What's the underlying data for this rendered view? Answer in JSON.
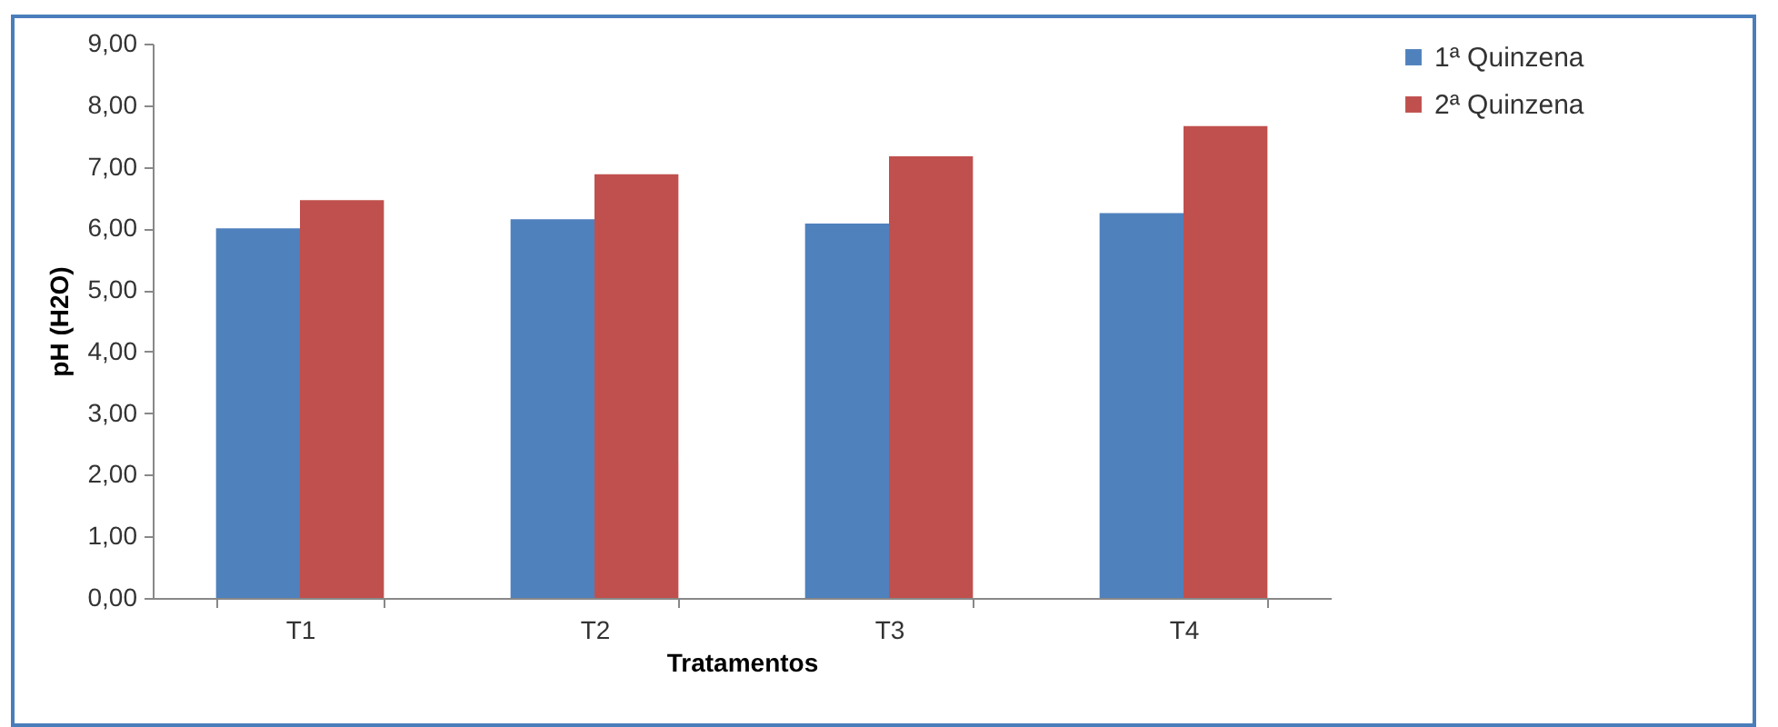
{
  "chart_data": {
    "type": "bar",
    "xlabel": "Tratamentos",
    "ylabel": "pH (H2O)",
    "categories": [
      "T1",
      "T2",
      "T3",
      "T4"
    ],
    "series": [
      {
        "name": "1ª Quinzena",
        "color": "#4f81bd",
        "values": [
          6.0,
          6.15,
          6.08,
          6.25
        ]
      },
      {
        "name": "2ª Quinzena",
        "color": "#c0504d",
        "values": [
          6.46,
          6.88,
          7.17,
          7.66
        ]
      }
    ],
    "ylim": [
      0,
      9
    ],
    "yticks": [
      {
        "value": 0,
        "label": "0,00"
      },
      {
        "value": 1,
        "label": "1,00"
      },
      {
        "value": 2,
        "label": "2,00"
      },
      {
        "value": 3,
        "label": "3,00"
      },
      {
        "value": 4,
        "label": "4,00"
      },
      {
        "value": 5,
        "label": "5,00"
      },
      {
        "value": 6,
        "label": "6,00"
      },
      {
        "value": 7,
        "label": "7,00"
      },
      {
        "value": 8,
        "label": "8,00"
      },
      {
        "value": 9,
        "label": "9,00"
      }
    ],
    "grid": false,
    "legend": "right"
  }
}
